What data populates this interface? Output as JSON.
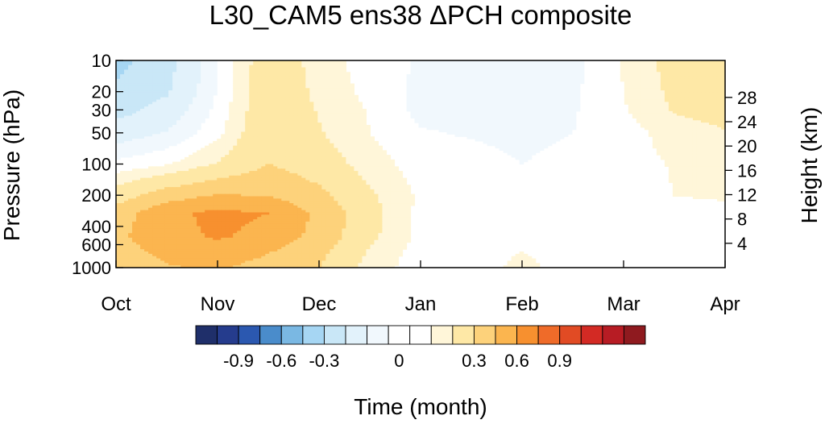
{
  "chart_data": {
    "type": "heatmap",
    "title": "L30_CAM5 ens38 ΔPCH composite",
    "xlabel": "Time (month)",
    "ylabel_left": "Pressure (hPa)",
    "ylabel_right": "Height (km)",
    "x_ticks": [
      "Oct",
      "Nov",
      "Dec",
      "Jan",
      "Feb",
      "Mar",
      "Apr"
    ],
    "x_range": [
      "Oct",
      "Apr"
    ],
    "y_scale": "log",
    "y_range_hpa": [
      1000,
      10
    ],
    "y_ticks_hpa": [
      10,
      20,
      30,
      50,
      100,
      200,
      400,
      600,
      1000
    ],
    "y_ticks_km": [
      4,
      8,
      12,
      16,
      20,
      24,
      28
    ],
    "colorbar": {
      "levels": [
        -1.05,
        -0.9,
        -0.75,
        -0.6,
        -0.45,
        -0.3,
        -0.15,
        -0.05,
        0,
        0.05,
        0.15,
        0.3,
        0.45,
        0.6,
        0.75,
        0.9,
        1.05
      ],
      "labeled_ticks": [
        "-0.9",
        "-0.6",
        "-0.3",
        "0",
        "0.3",
        "0.6",
        "0.9"
      ],
      "colors": [
        "#1f2f6a",
        "#253c8d",
        "#2b58b0",
        "#4a8ccb",
        "#7ab8e3",
        "#a6d6f3",
        "#c9e7f7",
        "#e2f2fb",
        "#f1f8fd",
        "#ffffff",
        "#ffffff",
        "#fff6d9",
        "#fee8a6",
        "#fdd27b",
        "#fbb54f",
        "#f7902f",
        "#ef6b29",
        "#e14b24",
        "#d32a24",
        "#b71c24",
        "#8f1a1f"
      ]
    },
    "field": {
      "x_months": [
        0,
        0.5,
        1,
        1.5,
        2,
        2.5,
        3,
        3.5,
        4,
        4.5,
        5,
        5.5,
        6
      ],
      "y_hpa": [
        1000,
        700,
        500,
        300,
        200,
        100,
        50,
        30,
        20,
        10
      ],
      "values": [
        [
          0.36,
          0.44,
          0.47,
          0.4,
          0.3,
          0.1,
          0.0,
          0.0,
          0.08,
          0.0,
          0.0,
          0.0,
          0.0
        ],
        [
          0.4,
          0.48,
          0.52,
          0.46,
          0.34,
          0.14,
          0.0,
          0.0,
          0.05,
          0.0,
          0.0,
          0.0,
          0.0
        ],
        [
          0.42,
          0.54,
          0.62,
          0.55,
          0.4,
          0.18,
          0.02,
          0.0,
          0.0,
          0.0,
          0.0,
          0.0,
          0.0
        ],
        [
          0.38,
          0.56,
          0.64,
          0.6,
          0.42,
          0.2,
          0.02,
          0.0,
          0.0,
          0.0,
          0.0,
          0.0,
          0.0
        ],
        [
          0.22,
          0.38,
          0.46,
          0.44,
          0.34,
          0.17,
          0.03,
          0.0,
          0.0,
          0.0,
          0.0,
          0.05,
          0.07
        ],
        [
          -0.02,
          0.04,
          0.16,
          0.3,
          0.22,
          0.1,
          0.0,
          0.0,
          -0.05,
          0.0,
          0.0,
          0.06,
          0.08
        ],
        [
          -0.22,
          -0.14,
          0.02,
          0.28,
          0.16,
          0.05,
          -0.04,
          -0.06,
          -0.09,
          -0.05,
          0.0,
          0.1,
          0.14
        ],
        [
          -0.36,
          -0.24,
          -0.02,
          0.27,
          0.14,
          0.04,
          -0.08,
          -0.09,
          -0.1,
          -0.06,
          0.04,
          0.16,
          0.2
        ],
        [
          -0.42,
          -0.32,
          -0.04,
          0.26,
          0.12,
          0.02,
          -0.08,
          -0.1,
          -0.11,
          -0.07,
          0.05,
          0.18,
          0.24
        ],
        [
          -0.5,
          -0.36,
          -0.05,
          0.25,
          0.1,
          0.0,
          -0.06,
          -0.09,
          -0.12,
          -0.08,
          0.06,
          0.2,
          0.22
        ]
      ]
    },
    "grid": false
  }
}
